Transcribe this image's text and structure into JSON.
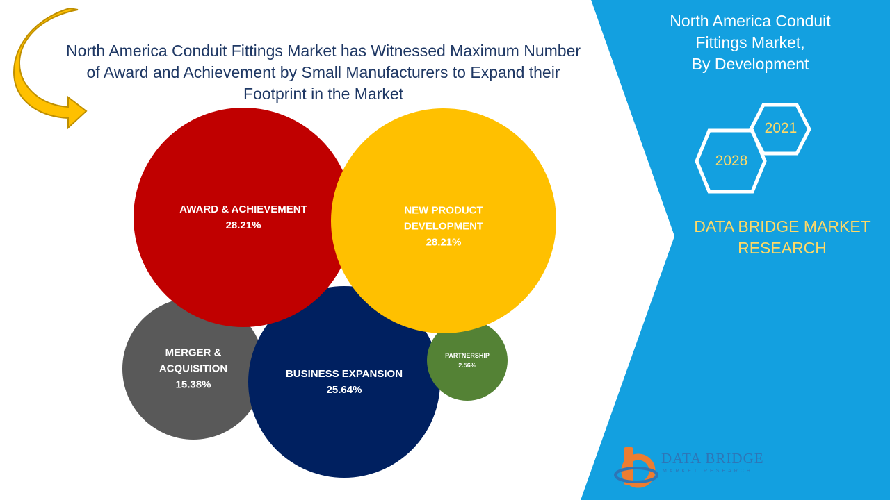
{
  "header": {
    "title": "North America Conduit Fittings Market has Witnessed Maximum Number of Award and Achievement by Small Manufacturers to Expand their Footprint in the Market"
  },
  "side_panel": {
    "title_line1": "North America Conduit",
    "title_line2": "Fittings Market,",
    "title_line3": "By Development",
    "year_start": "2021",
    "year_end": "2028",
    "brand_line1": "DATA BRIDGE MARKET",
    "brand_line2": "RESEARCH",
    "logo_text": "DATA BRIDGE",
    "logo_subtext": "MARKET RESEARCH",
    "panel_color": "#13a0e0",
    "accent_color": "#ffd966"
  },
  "chart_data": {
    "type": "bubble",
    "title": "",
    "series": [
      {
        "label_line1": "AWARD & ACHIEVEMENT",
        "label_line2": "",
        "value": 28.21,
        "display": "28.21%",
        "color": "#c00000"
      },
      {
        "label_line1": "NEW PRODUCT",
        "label_line2": "DEVELOPMENT",
        "value": 28.21,
        "display": "28.21%",
        "color": "#ffc000"
      },
      {
        "label_line1": "MERGER &",
        "label_line2": "ACQUISITION",
        "value": 15.38,
        "display": "15.38%",
        "color": "#595959"
      },
      {
        "label_line1": "BUSINESS EXPANSION",
        "label_line2": "",
        "value": 25.64,
        "display": "25.64%",
        "color": "#002060"
      },
      {
        "label_line1": "PARTNERSHIP",
        "label_line2": "",
        "value": 2.56,
        "display": "2.56%",
        "color": "#548235"
      }
    ]
  }
}
